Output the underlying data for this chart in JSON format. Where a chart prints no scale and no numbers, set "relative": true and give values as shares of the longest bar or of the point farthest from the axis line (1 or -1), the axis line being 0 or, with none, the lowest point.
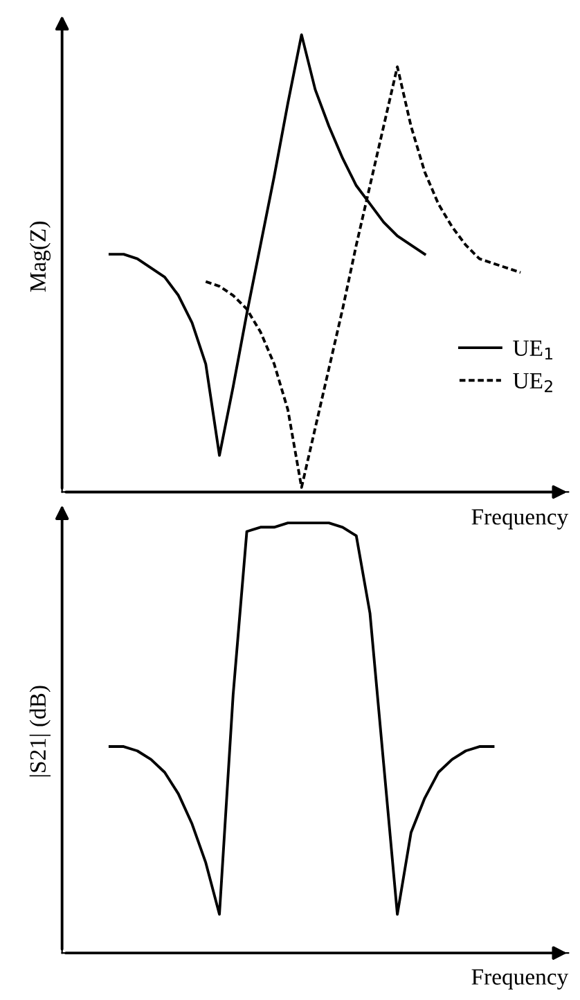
{
  "chart_data": [
    {
      "type": "line",
      "relative": true,
      "ylabel": "Mag(Z)",
      "xlabel": "Frequency",
      "legend": "lower right",
      "categories": [
        null,
        null,
        null,
        null,
        null,
        null,
        null,
        null,
        null,
        null,
        null,
        null,
        null,
        null,
        null,
        null,
        null,
        null,
        null,
        null,
        null,
        null,
        null,
        null,
        null,
        null,
        null,
        null,
        null,
        null,
        null,
        null,
        null,
        null,
        null,
        null,
        null,
        null
      ],
      "series": [
        {
          "name": "UE$_{1}$",
          "color": "#000000",
          "line_style": "solid",
          "values": [
            null,
            null,
            null,
            null,
            0.52,
            0.52,
            0.51,
            0.49,
            0.47,
            0.43,
            0.37,
            0.28,
            0.08,
            0.23,
            0.39,
            0.54,
            0.69,
            0.85,
            1.0,
            0.88,
            0.8,
            0.73,
            0.67,
            0.63,
            0.59,
            0.56,
            0.54,
            0.52,
            null,
            null,
            null,
            null,
            null,
            null,
            null,
            null,
            null,
            null
          ]
        },
        {
          "name": "UE$_{2}$",
          "color": "#000000",
          "line_style": "dotted",
          "values": [
            null,
            null,
            null,
            null,
            null,
            null,
            null,
            null,
            null,
            null,
            null,
            0.46,
            0.45,
            0.43,
            0.4,
            0.35,
            0.28,
            0.18,
            0.01,
            0.14,
            0.27,
            0.4,
            0.54,
            0.67,
            0.8,
            0.93,
            0.8,
            0.7,
            0.63,
            0.58,
            0.54,
            0.51,
            0.5,
            0.49,
            0.48,
            null,
            null,
            null
          ]
        }
      ]
    },
    {
      "type": "line",
      "relative": true,
      "ylabel": "|S21| (dB)",
      "xlabel": "Frequency",
      "categories": [
        null,
        null,
        null,
        null,
        null,
        null,
        null,
        null,
        null,
        null,
        null,
        null,
        null,
        null,
        null,
        null,
        null,
        null,
        null,
        null,
        null,
        null,
        null,
        null,
        null,
        null,
        null,
        null,
        null,
        null,
        null,
        null,
        null,
        null,
        null,
        null,
        null,
        null
      ],
      "series": [
        {
          "color": "#000000",
          "line_style": "solid",
          "values": [
            null,
            null,
            null,
            null,
            0.48,
            0.48,
            0.47,
            0.45,
            0.42,
            0.37,
            0.3,
            0.21,
            0.09,
            0.6,
            0.98,
            0.99,
            0.99,
            1.0,
            1.0,
            1.0,
            1.0,
            0.99,
            0.97,
            0.79,
            0.44,
            0.09,
            0.28,
            0.36,
            0.42,
            0.45,
            0.47,
            0.48,
            0.48,
            null,
            null,
            null,
            null,
            null
          ]
        }
      ]
    }
  ]
}
